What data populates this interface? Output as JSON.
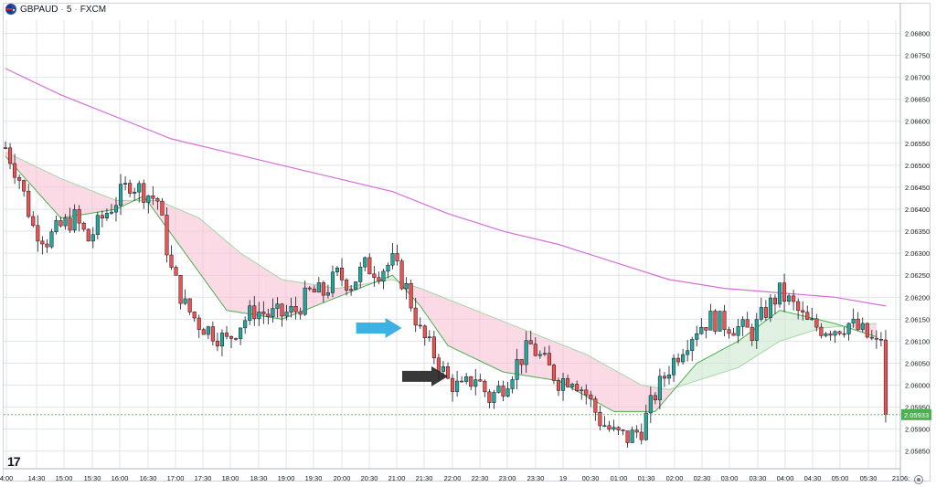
{
  "header": {
    "symbol": "GBPAUD",
    "interval": "5",
    "exchange": "FXCM",
    "flag_icon": "gbp-aud-flag-icon"
  },
  "logo_text": "17",
  "settings_icon": "gear-icon",
  "colors": {
    "up": "#26a69a",
    "down": "#ef5350",
    "ema_fast": "#4caf50",
    "ema_slow": "#a5d6a7",
    "ma_long": "#d36fd6",
    "fill_down": "#f8bbd0",
    "fill_up": "#c8e6c9",
    "grid": "#e0e3eb",
    "price_label_bg": "#4caf50",
    "arrow_blue": "#29a8e0",
    "arrow_black": "#222222"
  },
  "chart_data": {
    "type": "candlestick",
    "timeframe_minutes": 5,
    "x_tick_labels": [
      "4:00",
      "14:30",
      "15:00",
      "15:30",
      "16:00",
      "16:30",
      "17:00",
      "17:30",
      "18:00",
      "18:30",
      "19:00",
      "19:30",
      "20:00",
      "20:30",
      "21:00",
      "21:30",
      "22:00",
      "22:30",
      "23:00",
      "23:30",
      "19",
      "00:30",
      "01:00",
      "01:30",
      "02:00",
      "02:30",
      "03:00",
      "03:30",
      "04:00",
      "04:30",
      "05:00",
      "05:30",
      "21",
      "06:"
    ],
    "y_tick_labels": [
      "2.06800",
      "2.06750",
      "2.06700",
      "2.06650",
      "2.06600",
      "2.06550",
      "2.06500",
      "2.06450",
      "2.06400",
      "2.06350",
      "2.06300",
      "2.06250",
      "2.06200",
      "2.06150",
      "2.06100",
      "2.06050",
      "2.06000",
      "2.05950",
      "2.05900",
      "2.05850"
    ],
    "ylim": [
      2.0581,
      2.0683
    ],
    "last_price": "2.05933",
    "grid": true,
    "annotations": [
      {
        "type": "arrow",
        "color": "blue",
        "direction": "right",
        "near_time": "21:10",
        "near_price": 2.0613
      },
      {
        "type": "arrow",
        "color": "black",
        "direction": "right",
        "near_time": "22:00",
        "near_price": 2.0602
      }
    ],
    "price_path": [
      {
        "t": "14:00",
        "p": 2.0654
      },
      {
        "t": "14:15",
        "p": 2.0647
      },
      {
        "t": "14:30",
        "p": 2.0636
      },
      {
        "t": "14:45",
        "p": 2.0633
      },
      {
        "t": "15:00",
        "p": 2.0636
      },
      {
        "t": "15:15",
        "p": 2.0638
      },
      {
        "t": "15:30",
        "p": 2.0633
      },
      {
        "t": "15:45",
        "p": 2.0638
      },
      {
        "t": "16:00",
        "p": 2.0642
      },
      {
        "t": "16:15",
        "p": 2.0646
      },
      {
        "t": "16:30",
        "p": 2.0644
      },
      {
        "t": "16:45",
        "p": 2.0642
      },
      {
        "t": "17:00",
        "p": 2.0626
      },
      {
        "t": "17:15",
        "p": 2.0618
      },
      {
        "t": "17:30",
        "p": 2.0614
      },
      {
        "t": "17:45",
        "p": 2.0612
      },
      {
        "t": "18:00",
        "p": 2.061
      },
      {
        "t": "18:15",
        "p": 2.0614
      },
      {
        "t": "18:30",
        "p": 2.0617
      },
      {
        "t": "18:45",
        "p": 2.0616
      },
      {
        "t": "19:00",
        "p": 2.0616
      },
      {
        "t": "19:15",
        "p": 2.0617
      },
      {
        "t": "19:30",
        "p": 2.0621
      },
      {
        "t": "19:45",
        "p": 2.0621
      },
      {
        "t": "20:00",
        "p": 2.0625
      },
      {
        "t": "20:15",
        "p": 2.0623
      },
      {
        "t": "20:30",
        "p": 2.0627
      },
      {
        "t": "20:45",
        "p": 2.0626
      },
      {
        "t": "21:00",
        "p": 2.0628
      },
      {
        "t": "21:15",
        "p": 2.0622
      },
      {
        "t": "21:30",
        "p": 2.0612
      },
      {
        "t": "21:45",
        "p": 2.0607
      },
      {
        "t": "22:00",
        "p": 2.0601
      },
      {
        "t": "22:15",
        "p": 2.0599
      },
      {
        "t": "22:30",
        "p": 2.0602
      },
      {
        "t": "22:45",
        "p": 2.0597
      },
      {
        "t": "23:00",
        "p": 2.06
      },
      {
        "t": "23:15",
        "p": 2.0605
      },
      {
        "t": "23:30",
        "p": 2.0609
      },
      {
        "t": "23:45",
        "p": 2.0605
      },
      {
        "t": "00:00",
        "p": 2.0601
      },
      {
        "t": "00:15",
        "p": 2.0602
      },
      {
        "t": "00:30",
        "p": 2.0598
      },
      {
        "t": "00:45",
        "p": 2.0592
      },
      {
        "t": "01:00",
        "p": 2.0589
      },
      {
        "t": "01:15",
        "p": 2.0588
      },
      {
        "t": "01:30",
        "p": 2.059
      },
      {
        "t": "01:45",
        "p": 2.0598
      },
      {
        "t": "02:00",
        "p": 2.0604
      },
      {
        "t": "02:15",
        "p": 2.0609
      },
      {
        "t": "02:30",
        "p": 2.0613
      },
      {
        "t": "02:45",
        "p": 2.0615
      },
      {
        "t": "03:00",
        "p": 2.0614
      },
      {
        "t": "03:15",
        "p": 2.0613
      },
      {
        "t": "03:30",
        "p": 2.0612
      },
      {
        "t": "03:45",
        "p": 2.0617
      },
      {
        "t": "04:00",
        "p": 2.0621
      },
      {
        "t": "04:15",
        "p": 2.0618
      },
      {
        "t": "04:30",
        "p": 2.0614
      },
      {
        "t": "04:45",
        "p": 2.0613
      },
      {
        "t": "05:00",
        "p": 2.0613
      },
      {
        "t": "05:15",
        "p": 2.0614
      },
      {
        "t": "05:30",
        "p": 2.0612
      },
      {
        "t": "05:45",
        "p": 2.0609
      },
      {
        "t": "05:50",
        "p": 2.0611
      },
      {
        "t": "05:55",
        "p": 2.05933
      }
    ],
    "ema_fast": [
      {
        "t": "14:00",
        "p": 2.0652
      },
      {
        "t": "15:00",
        "p": 2.0638
      },
      {
        "t": "16:00",
        "p": 2.064
      },
      {
        "t": "16:30",
        "p": 2.0643
      },
      {
        "t": "17:15",
        "p": 2.063
      },
      {
        "t": "18:00",
        "p": 2.0617
      },
      {
        "t": "19:00",
        "p": 2.0615
      },
      {
        "t": "20:00",
        "p": 2.062
      },
      {
        "t": "21:00",
        "p": 2.0625
      },
      {
        "t": "21:30",
        "p": 2.0618
      },
      {
        "t": "22:00",
        "p": 2.0609
      },
      {
        "t": "23:00",
        "p": 2.0603
      },
      {
        "t": "00:00",
        "p": 2.0601
      },
      {
        "t": "01:00",
        "p": 2.0594
      },
      {
        "t": "01:45",
        "p": 2.0594
      },
      {
        "t": "02:30",
        "p": 2.0605
      },
      {
        "t": "03:15",
        "p": 2.061
      },
      {
        "t": "04:00",
        "p": 2.0617
      },
      {
        "t": "05:00",
        "p": 2.0614
      },
      {
        "t": "05:45",
        "p": 2.0611
      }
    ],
    "ema_slow": [
      {
        "t": "14:00",
        "p": 2.0653
      },
      {
        "t": "15:00",
        "p": 2.0647
      },
      {
        "t": "16:00",
        "p": 2.0642
      },
      {
        "t": "16:45",
        "p": 2.0642
      },
      {
        "t": "17:30",
        "p": 2.0638
      },
      {
        "t": "18:15",
        "p": 2.063
      },
      {
        "t": "19:00",
        "p": 2.0624
      },
      {
        "t": "20:00",
        "p": 2.0622
      },
      {
        "t": "21:00",
        "p": 2.0624
      },
      {
        "t": "21:30",
        "p": 2.0622
      },
      {
        "t": "22:30",
        "p": 2.0617
      },
      {
        "t": "23:30",
        "p": 2.0612
      },
      {
        "t": "00:30",
        "p": 2.0607
      },
      {
        "t": "01:30",
        "p": 2.06
      },
      {
        "t": "02:00",
        "p": 2.0599
      },
      {
        "t": "02:30",
        "p": 2.0601
      },
      {
        "t": "03:15",
        "p": 2.0604
      },
      {
        "t": "04:00",
        "p": 2.061
      },
      {
        "t": "04:45",
        "p": 2.0613
      },
      {
        "t": "05:45",
        "p": 2.0614
      }
    ],
    "ma_long": [
      {
        "t": "14:00",
        "p": 2.0672
      },
      {
        "t": "15:00",
        "p": 2.0666
      },
      {
        "t": "16:00",
        "p": 2.0661
      },
      {
        "t": "17:00",
        "p": 2.0656
      },
      {
        "t": "18:00",
        "p": 2.0653
      },
      {
        "t": "19:00",
        "p": 2.065
      },
      {
        "t": "20:00",
        "p": 2.0647
      },
      {
        "t": "21:00",
        "p": 2.0644
      },
      {
        "t": "22:00",
        "p": 2.0639
      },
      {
        "t": "23:00",
        "p": 2.0635
      },
      {
        "t": "00:00",
        "p": 2.0632
      },
      {
        "t": "01:00",
        "p": 2.0628
      },
      {
        "t": "02:00",
        "p": 2.0624
      },
      {
        "t": "03:00",
        "p": 2.0622
      },
      {
        "t": "04:00",
        "p": 2.0621
      },
      {
        "t": "05:00",
        "p": 2.062
      },
      {
        "t": "05:55",
        "p": 2.0618
      }
    ]
  }
}
